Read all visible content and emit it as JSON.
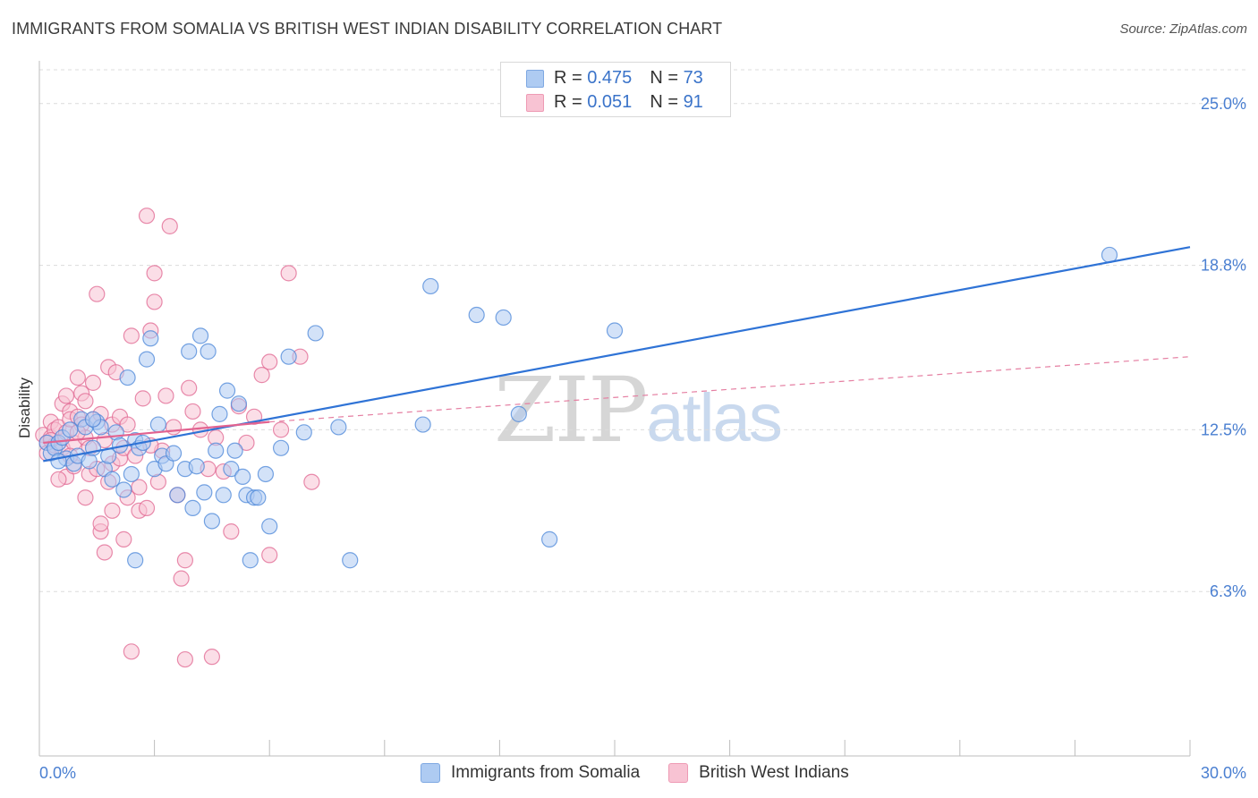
{
  "header": {
    "title": "IMMIGRANTS FROM SOMALIA VS BRITISH WEST INDIAN DISABILITY CORRELATION CHART",
    "source": "Source: ZipAtlas.com"
  },
  "watermark": {
    "zip": "ZIP",
    "atlas": "atlas"
  },
  "legend": {
    "rows": [
      {
        "r_label": "R = ",
        "r_value": "0.475",
        "n_label": "N = ",
        "n_value": "73",
        "color": "#9bbcec"
      },
      {
        "r_label": "R = ",
        "r_value": "0.051",
        "n_label": "N = ",
        "n_value": "91",
        "color": "#f4a8c0"
      }
    ]
  },
  "bottom_legend": [
    {
      "label": "Immigrants from Somalia",
      "color": "#aecbf2"
    },
    {
      "label": "British West Indians",
      "color": "#f8c3d3"
    }
  ],
  "chart_data": {
    "type": "scatter",
    "title": "IMMIGRANTS FROM SOMALIA VS BRITISH WEST INDIAN DISABILITY CORRELATION CHART",
    "xlabel": "",
    "ylabel": "Disability",
    "xlim": [
      0,
      30
    ],
    "ylim": [
      0,
      26.5
    ],
    "x_ticks": [
      "0.0%",
      "30.0%"
    ],
    "y_ticks": [
      {
        "value": 25.0,
        "label": "25.0%"
      },
      {
        "value": 18.8,
        "label": "18.8%"
      },
      {
        "value": 12.5,
        "label": "12.5%"
      },
      {
        "value": 6.3,
        "label": "6.3%"
      }
    ],
    "grid": true,
    "legend_position": "top-center",
    "series": [
      {
        "name": "Immigrants from Somalia",
        "color": "#4a86d8",
        "fill": "#aecbf2",
        "trend": {
          "x": [
            0.1,
            30.0
          ],
          "y": [
            11.3,
            19.5
          ],
          "style": "solid"
        },
        "points": [
          [
            0.2,
            12.0
          ],
          [
            0.3,
            11.6
          ],
          [
            0.4,
            11.8
          ],
          [
            0.5,
            12.0
          ],
          [
            0.6,
            12.2
          ],
          [
            0.7,
            11.4
          ],
          [
            0.8,
            12.5
          ],
          [
            0.9,
            11.2
          ],
          [
            1.0,
            11.5
          ],
          [
            1.1,
            12.9
          ],
          [
            1.2,
            12.6
          ],
          [
            1.3,
            11.3
          ],
          [
            1.4,
            11.8
          ],
          [
            1.5,
            12.8
          ],
          [
            1.6,
            12.6
          ],
          [
            1.7,
            11.0
          ],
          [
            1.8,
            11.5
          ],
          [
            1.9,
            10.6
          ],
          [
            2.0,
            12.4
          ],
          [
            2.1,
            11.9
          ],
          [
            2.2,
            10.2
          ],
          [
            2.3,
            14.5
          ],
          [
            2.4,
            10.8
          ],
          [
            2.5,
            12.1
          ],
          [
            2.6,
            11.8
          ],
          [
            2.7,
            12.0
          ],
          [
            2.8,
            15.2
          ],
          [
            2.9,
            16.0
          ],
          [
            3.0,
            11.0
          ],
          [
            3.1,
            12.7
          ],
          [
            3.2,
            11.5
          ],
          [
            3.3,
            11.2
          ],
          [
            3.5,
            11.6
          ],
          [
            3.6,
            10.0
          ],
          [
            3.8,
            11.0
          ],
          [
            3.9,
            15.5
          ],
          [
            4.0,
            9.5
          ],
          [
            4.1,
            11.1
          ],
          [
            4.2,
            16.1
          ],
          [
            4.3,
            10.1
          ],
          [
            4.4,
            15.5
          ],
          [
            4.5,
            9.0
          ],
          [
            4.6,
            11.7
          ],
          [
            4.7,
            13.1
          ],
          [
            4.8,
            10.0
          ],
          [
            4.9,
            14.0
          ],
          [
            5.0,
            11.0
          ],
          [
            5.1,
            11.7
          ],
          [
            5.2,
            13.5
          ],
          [
            5.3,
            10.7
          ],
          [
            5.4,
            10.0
          ],
          [
            5.5,
            7.5
          ],
          [
            5.6,
            9.9
          ],
          [
            5.7,
            9.9
          ],
          [
            5.9,
            10.8
          ],
          [
            6.3,
            11.8
          ],
          [
            6.5,
            15.3
          ],
          [
            6.0,
            8.8
          ],
          [
            6.9,
            12.4
          ],
          [
            7.2,
            16.2
          ],
          [
            7.8,
            12.6
          ],
          [
            8.1,
            7.5
          ],
          [
            10.0,
            12.7
          ],
          [
            10.2,
            18.0
          ],
          [
            11.4,
            16.9
          ],
          [
            12.1,
            16.8
          ],
          [
            12.5,
            13.1
          ],
          [
            13.3,
            8.3
          ],
          [
            15.0,
            16.3
          ],
          [
            27.9,
            19.2
          ],
          [
            1.4,
            12.9
          ],
          [
            0.5,
            11.3
          ],
          [
            2.5,
            7.5
          ]
        ]
      },
      {
        "name": "British West Indians",
        "color": "#e06690",
        "fill": "#f8c3d3",
        "trend": {
          "x": [
            0.1,
            6.0
          ],
          "y": [
            12.0,
            12.8
          ],
          "style": "solid",
          "extension": {
            "x": [
              6.0,
              30.0
            ],
            "y": [
              12.8,
              15.3
            ],
            "style": "dashed"
          }
        },
        "points": [
          [
            0.1,
            12.3
          ],
          [
            0.2,
            12.0
          ],
          [
            0.2,
            11.6
          ],
          [
            0.3,
            12.8
          ],
          [
            0.3,
            12.2
          ],
          [
            0.4,
            12.5
          ],
          [
            0.4,
            11.9
          ],
          [
            0.5,
            12.6
          ],
          [
            0.5,
            12.0
          ],
          [
            0.6,
            13.5
          ],
          [
            0.6,
            11.8
          ],
          [
            0.7,
            12.4
          ],
          [
            0.7,
            10.7
          ],
          [
            0.8,
            13.2
          ],
          [
            0.8,
            12.9
          ],
          [
            0.9,
            12.0
          ],
          [
            0.9,
            11.1
          ],
          [
            1.0,
            14.5
          ],
          [
            1.0,
            13.0
          ],
          [
            1.1,
            13.9
          ],
          [
            1.1,
            12.7
          ],
          [
            1.2,
            13.6
          ],
          [
            1.2,
            12.2
          ],
          [
            1.3,
            11.8
          ],
          [
            1.3,
            10.8
          ],
          [
            1.4,
            12.9
          ],
          [
            1.4,
            14.3
          ],
          [
            1.5,
            11.0
          ],
          [
            1.5,
            17.7
          ],
          [
            1.6,
            13.1
          ],
          [
            1.6,
            8.6
          ],
          [
            1.7,
            12.1
          ],
          [
            1.7,
            7.8
          ],
          [
            1.8,
            10.5
          ],
          [
            1.8,
            14.9
          ],
          [
            1.9,
            11.2
          ],
          [
            1.9,
            12.7
          ],
          [
            2.0,
            14.7
          ],
          [
            2.1,
            11.4
          ],
          [
            2.1,
            13.0
          ],
          [
            2.2,
            11.8
          ],
          [
            2.2,
            8.3
          ],
          [
            2.3,
            12.7
          ],
          [
            2.3,
            9.9
          ],
          [
            2.4,
            16.1
          ],
          [
            2.5,
            11.5
          ],
          [
            2.6,
            10.3
          ],
          [
            2.6,
            9.4
          ],
          [
            2.7,
            13.7
          ],
          [
            2.8,
            20.7
          ],
          [
            2.8,
            9.5
          ],
          [
            2.9,
            16.3
          ],
          [
            3.0,
            17.4
          ],
          [
            3.0,
            18.5
          ],
          [
            3.1,
            10.5
          ],
          [
            3.2,
            11.7
          ],
          [
            3.3,
            13.8
          ],
          [
            3.4,
            20.3
          ],
          [
            3.5,
            12.6
          ],
          [
            3.6,
            10.0
          ],
          [
            3.7,
            6.8
          ],
          [
            3.8,
            3.7
          ],
          [
            3.9,
            14.1
          ],
          [
            4.0,
            13.2
          ],
          [
            4.2,
            12.5
          ],
          [
            4.4,
            11.0
          ],
          [
            4.6,
            12.2
          ],
          [
            4.8,
            10.9
          ],
          [
            5.0,
            8.6
          ],
          [
            5.2,
            13.4
          ],
          [
            5.4,
            12.0
          ],
          [
            5.6,
            13.0
          ],
          [
            6.0,
            15.1
          ],
          [
            5.8,
            14.6
          ],
          [
            6.0,
            7.7
          ],
          [
            6.3,
            12.5
          ],
          [
            6.5,
            18.5
          ],
          [
            6.8,
            15.3
          ],
          [
            7.1,
            10.5
          ],
          [
            0.5,
            10.6
          ],
          [
            0.7,
            13.8
          ],
          [
            1.0,
            12.4
          ],
          [
            1.2,
            9.9
          ],
          [
            1.6,
            8.9
          ],
          [
            2.4,
            4.0
          ],
          [
            3.8,
            7.5
          ],
          [
            0.3,
            12.1
          ],
          [
            1.9,
            9.4
          ],
          [
            2.9,
            11.9
          ],
          [
            0.8,
            11.5
          ],
          [
            4.5,
            3.8
          ]
        ]
      }
    ]
  }
}
